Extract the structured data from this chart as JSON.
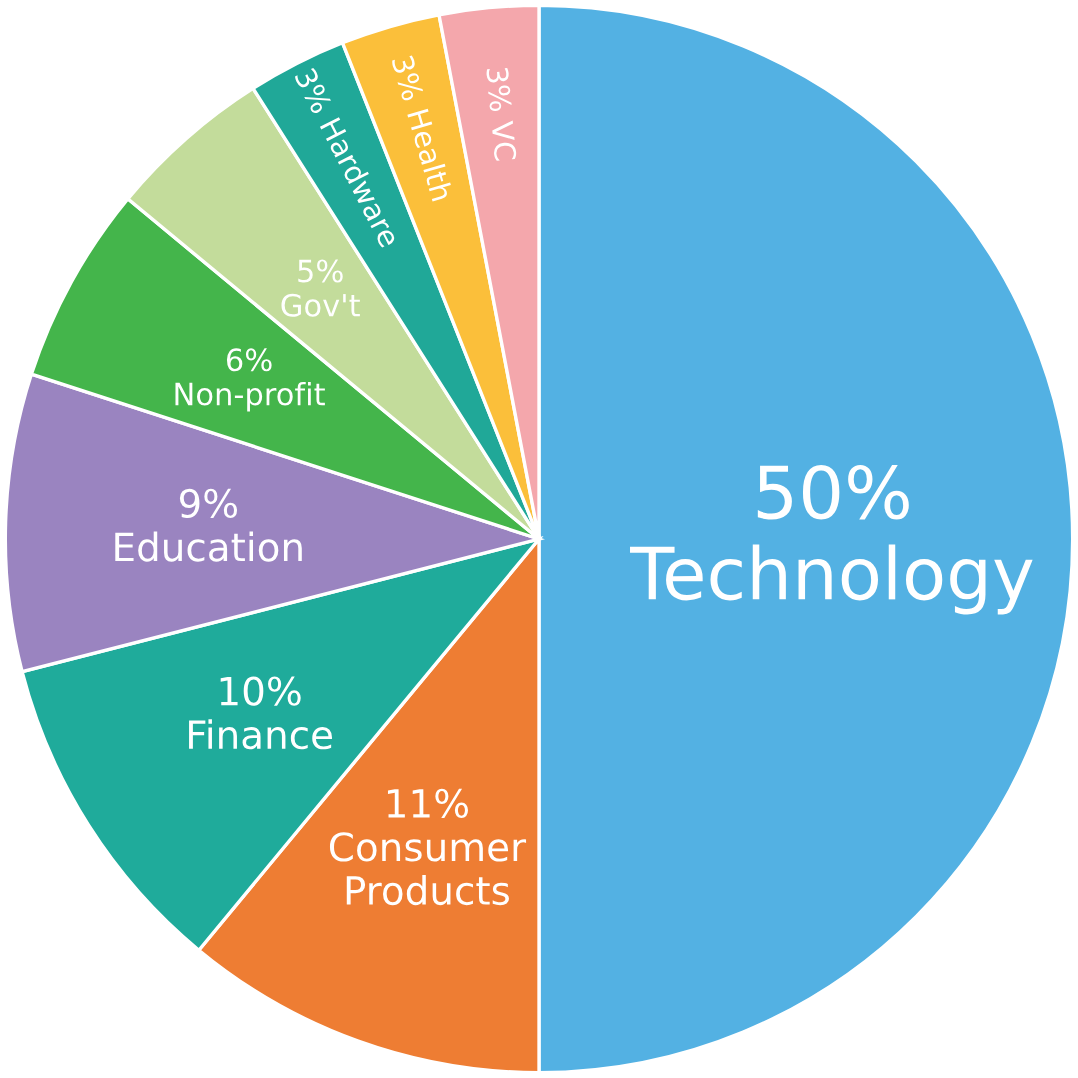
{
  "chart_data": {
    "type": "pie",
    "categories": [
      "Technology",
      "Consumer Products",
      "Finance",
      "Education",
      "Non-profit",
      "Gov't",
      "Hardware",
      "Health",
      "VC"
    ],
    "values": [
      50,
      11,
      10,
      9,
      6,
      5,
      3,
      3,
      3
    ],
    "value_labels": [
      "50%",
      "11%",
      "10%",
      "9%",
      "6%",
      "5%",
      "3%",
      "3%",
      "3%"
    ],
    "colors": [
      "#53b1e3",
      "#ee7d33",
      "#1fab9b",
      "#9a84c0",
      "#44b54b",
      "#c3dc9b",
      "#20a898",
      "#fbbf3a",
      "#f4a7ac"
    ]
  }
}
